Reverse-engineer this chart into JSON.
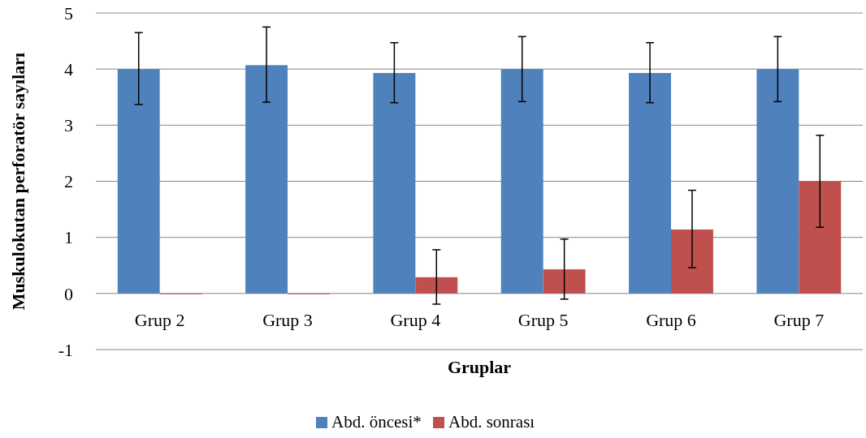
{
  "chart_data": {
    "type": "bar",
    "xlabel": "Gruplar",
    "ylabel": "Muskulokutan perforatör sayıları",
    "categories": [
      "Grup 2",
      "Grup 3",
      "Grup 4",
      "Grup 5",
      "Grup 6",
      "Grup 7"
    ],
    "series": [
      {
        "name": "Abd. öncesi*",
        "color": "#4f81bd",
        "values": [
          4.0,
          4.07,
          3.93,
          4.0,
          3.93,
          4.0
        ],
        "errors": [
          [
            3.37,
            4.65
          ],
          [
            3.41,
            4.75
          ],
          [
            3.4,
            4.47
          ],
          [
            3.42,
            4.58
          ],
          [
            3.4,
            4.47
          ],
          [
            3.42,
            4.58
          ]
        ]
      },
      {
        "name": "Abd. sonrası",
        "color": "#c0504d",
        "values": [
          0,
          0,
          0.29,
          0.43,
          1.14,
          2.0
        ],
        "errors": [
          null,
          null,
          [
            -0.19,
            0.78
          ],
          [
            -0.1,
            0.97
          ],
          [
            0.46,
            1.84
          ],
          [
            1.18,
            2.82
          ]
        ]
      }
    ],
    "ylim": [
      -1,
      5
    ],
    "yticks": [
      -1,
      0,
      1,
      2,
      3,
      4,
      5
    ],
    "grid": "y",
    "legend": "bottom"
  }
}
